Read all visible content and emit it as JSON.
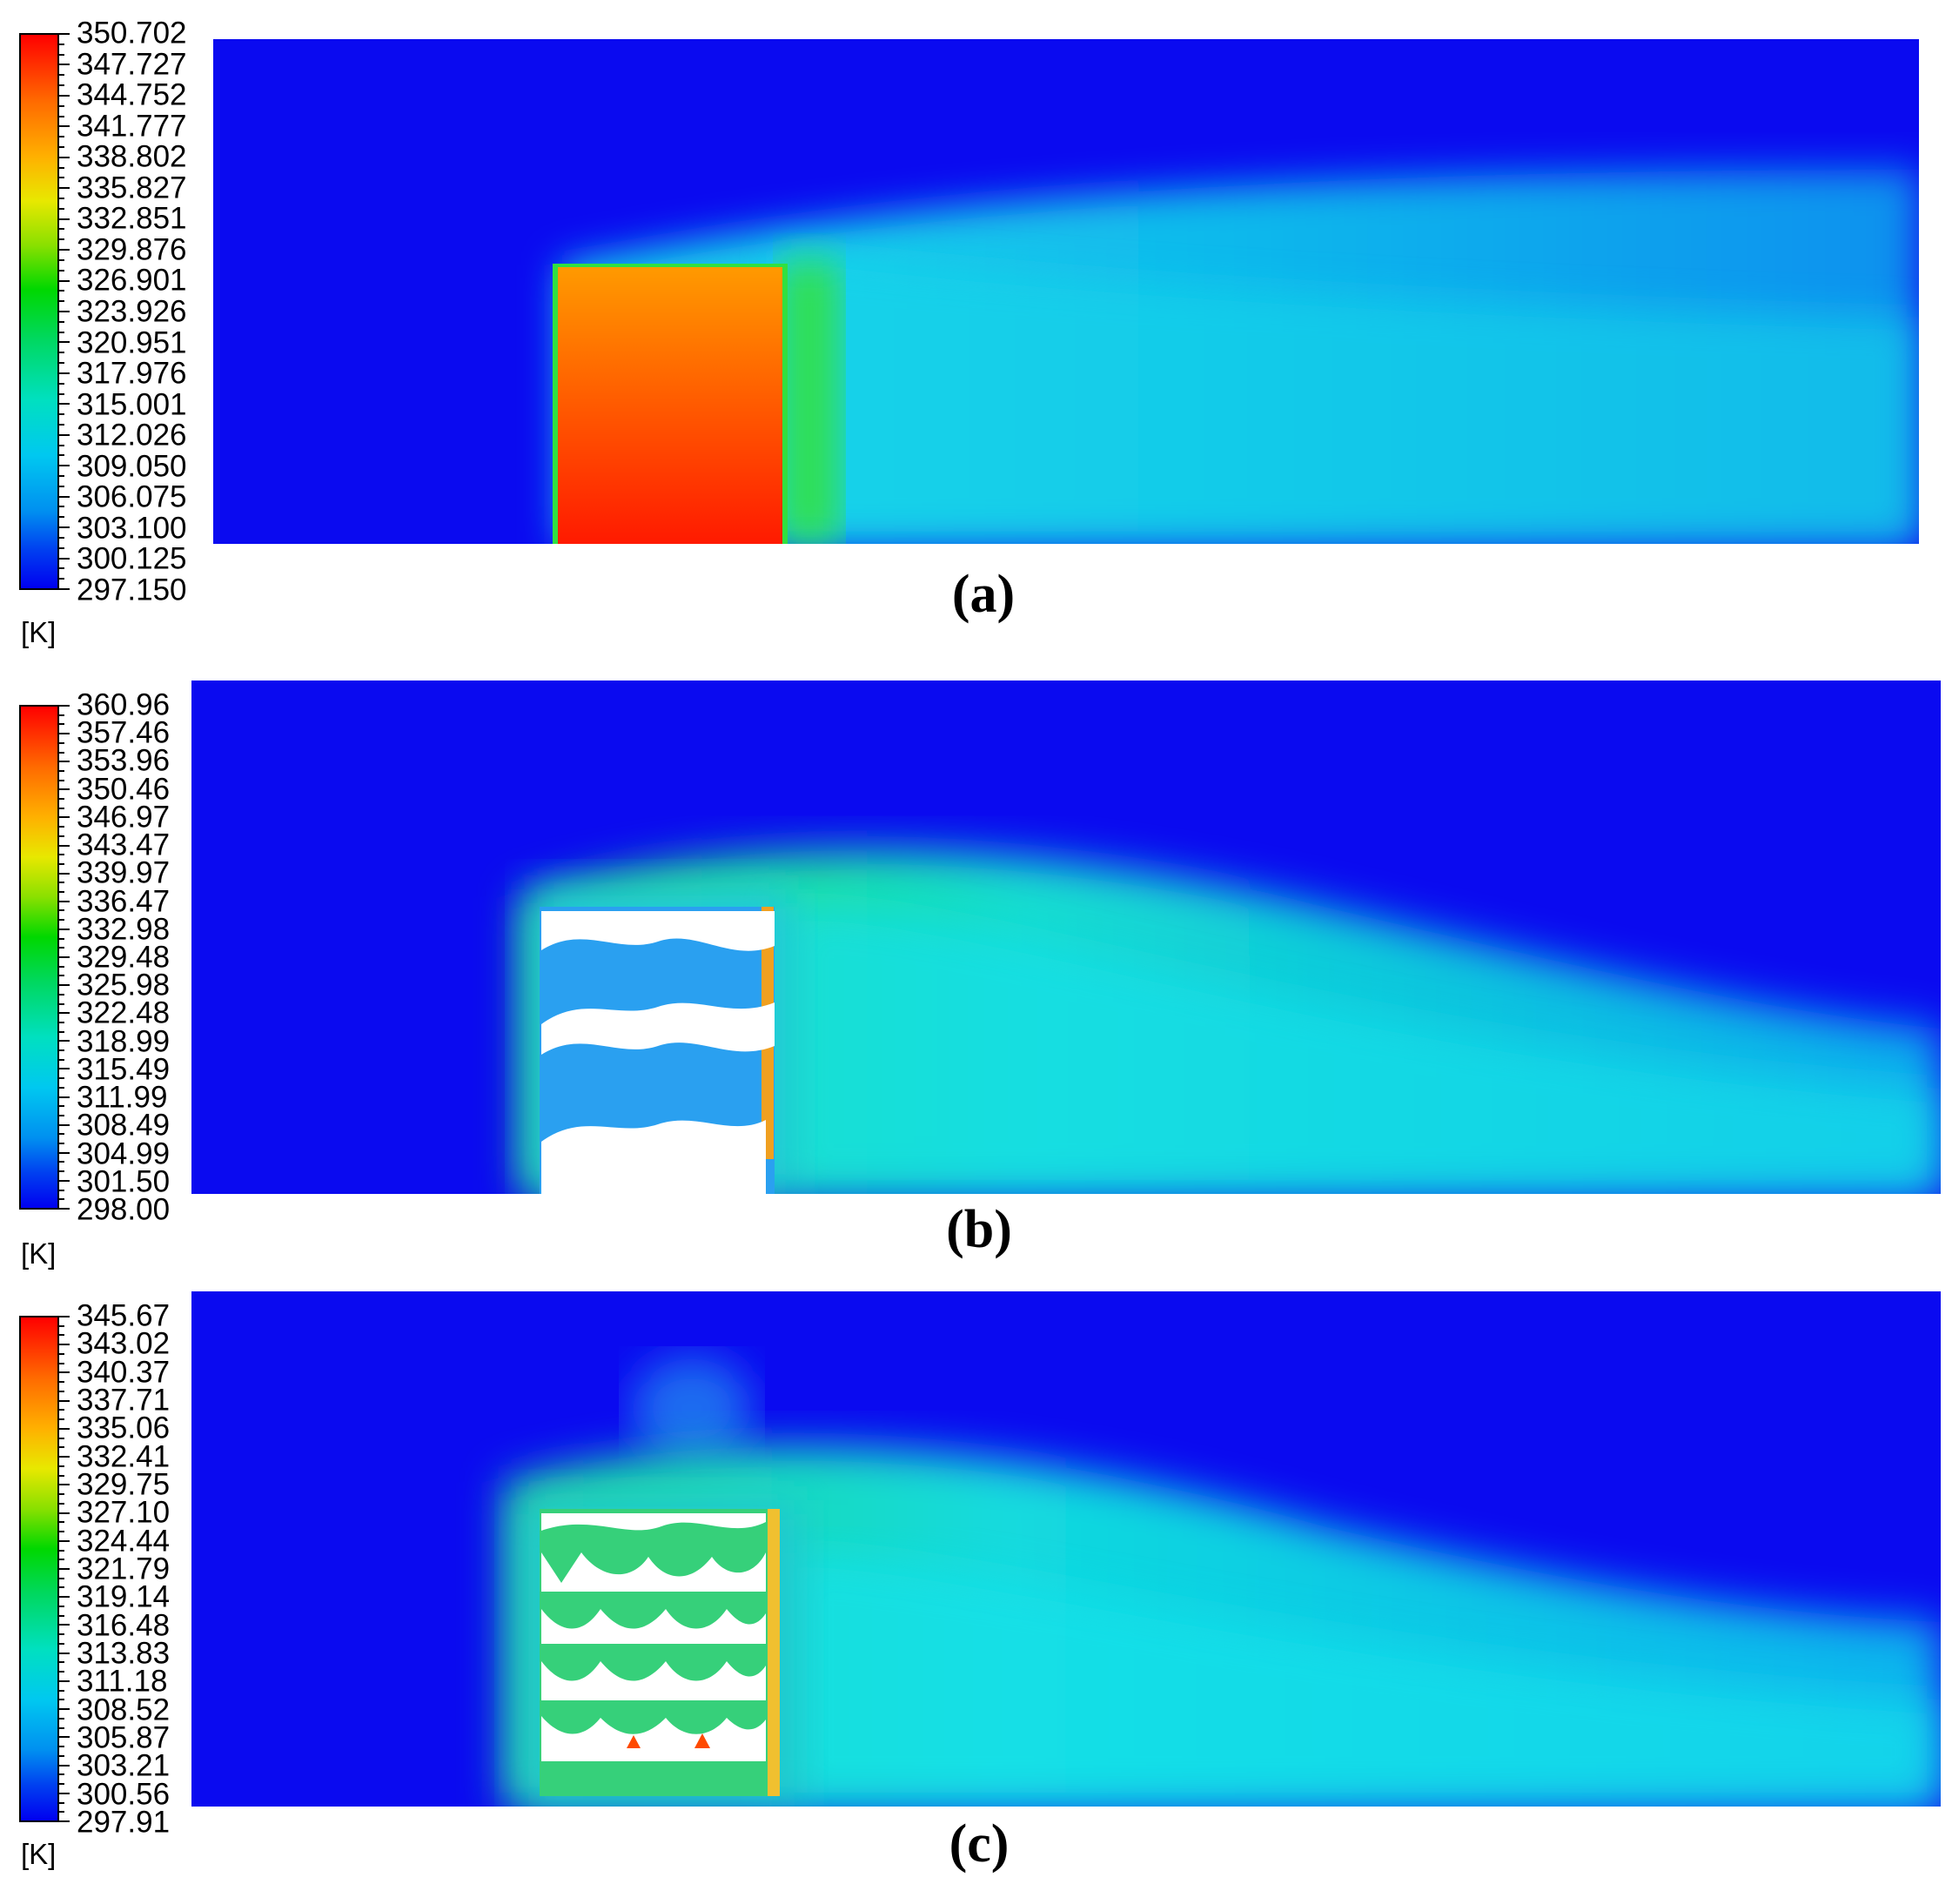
{
  "panels": [
    {
      "id": "a",
      "caption": "(a)",
      "unit": "[K]",
      "legend_values": [
        "350.702",
        "347.727",
        "344.752",
        "341.777",
        "338.802",
        "335.827",
        "332.851",
        "329.876",
        "326.901",
        "323.926",
        "320.951",
        "317.976",
        "315.001",
        "312.026",
        "309.050",
        "306.075",
        "303.100",
        "300.125",
        "297.150"
      ],
      "geometry": "solid-block"
    },
    {
      "id": "b",
      "caption": "(b)",
      "unit": "[K]",
      "legend_values": [
        "360.96",
        "357.46",
        "353.96",
        "350.46",
        "346.97",
        "343.47",
        "339.97",
        "336.47",
        "332.98",
        "329.48",
        "325.98",
        "322.48",
        "318.99",
        "315.49",
        "311.99",
        "308.49",
        "304.99",
        "301.50",
        "298.00"
      ],
      "geometry": "wavy-channels-3"
    },
    {
      "id": "c",
      "caption": "(c)",
      "unit": "[K]",
      "legend_values": [
        "345.67",
        "343.02",
        "340.37",
        "337.71",
        "335.06",
        "332.41",
        "329.75",
        "327.10",
        "324.44",
        "321.79",
        "319.14",
        "316.48",
        "313.83",
        "311.18",
        "308.52",
        "305.87",
        "303.21",
        "300.56",
        "297.91"
      ],
      "geometry": "wavy-channels-5"
    }
  ],
  "colors": {
    "cold": "#0a0af0",
    "hot": "#ff1e00",
    "plume": "#12c8e6",
    "mid": "#22e85a"
  }
}
